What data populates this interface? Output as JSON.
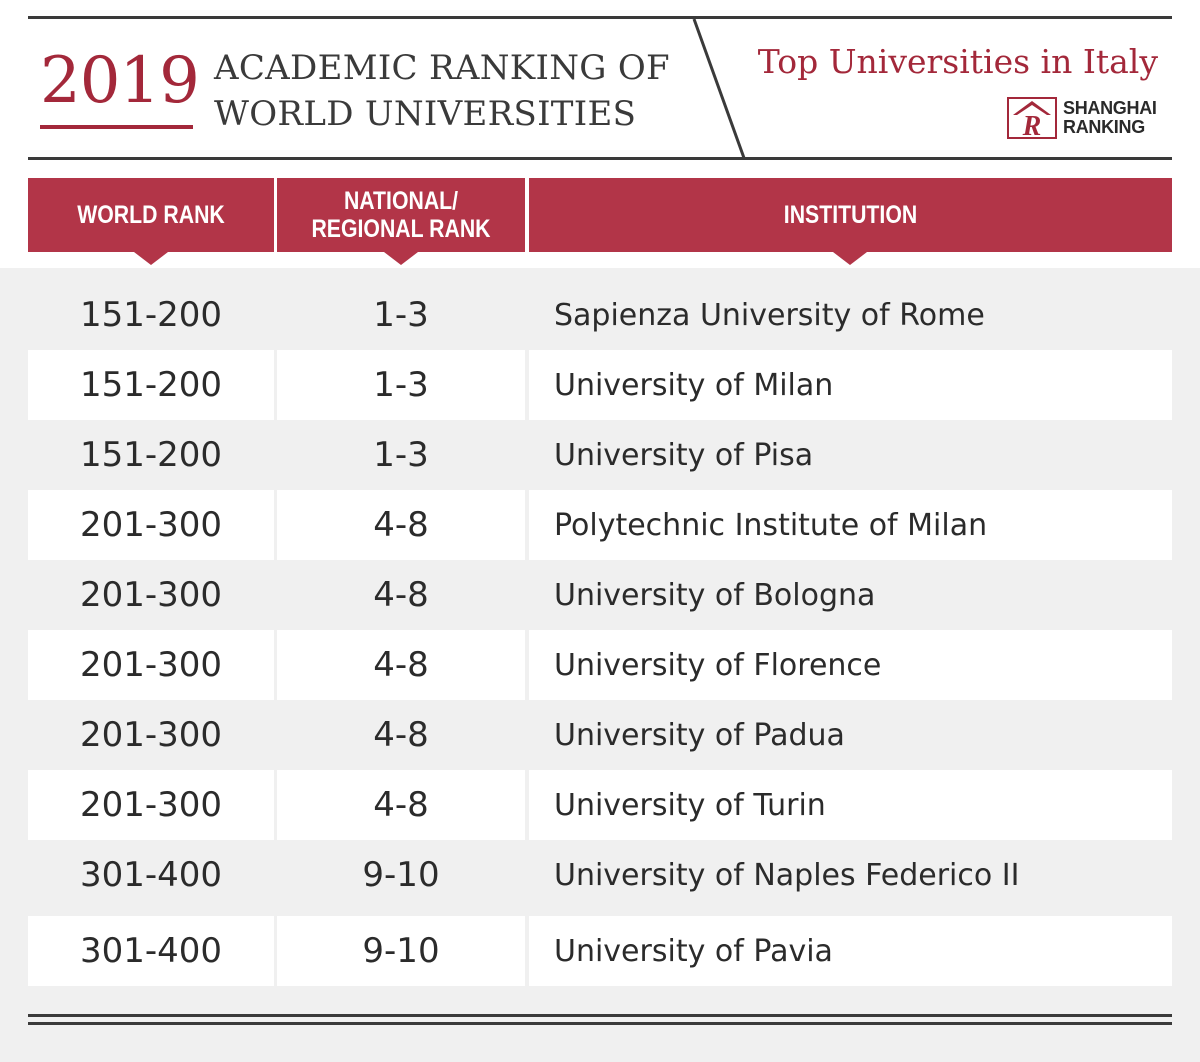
{
  "header": {
    "year": "2019",
    "title_line1": "ACADEMIC RANKING OF",
    "title_line2": "WORLD UNIVERSITIES",
    "subtitle": "Top Universities in Italy",
    "logo": {
      "text_line1": "SHANGHAI",
      "text_line2": "RANKING",
      "mark_letter": "R"
    }
  },
  "colors": {
    "accent": "#a3283a",
    "header_tab": "#b23548",
    "text": "#2b2b2b",
    "background": "#f0f0f0"
  },
  "table": {
    "columns": [
      "WORLD RANK",
      "NATIONAL/ REGIONAL RANK",
      "INSTITUTION"
    ],
    "rows": [
      {
        "world_rank": "151-200",
        "national_rank": "1-3",
        "institution": "Sapienza University of Rome"
      },
      {
        "world_rank": "151-200",
        "national_rank": "1-3",
        "institution": "University of Milan"
      },
      {
        "world_rank": "151-200",
        "national_rank": "1-3",
        "institution": "University of Pisa"
      },
      {
        "world_rank": "201-300",
        "national_rank": "4-8",
        "institution": "Polytechnic Institute of Milan"
      },
      {
        "world_rank": "201-300",
        "national_rank": "4-8",
        "institution": "University of Bologna"
      },
      {
        "world_rank": "201-300",
        "national_rank": "4-8",
        "institution": "University of Florence"
      },
      {
        "world_rank": "201-300",
        "national_rank": "4-8",
        "institution": "University of Padua"
      },
      {
        "world_rank": "201-300",
        "national_rank": "4-8",
        "institution": "University of Turin"
      },
      {
        "world_rank": "301-400",
        "national_rank": "9-10",
        "institution": "University of Naples Federico II"
      },
      {
        "world_rank": "301-400",
        "national_rank": "9-10",
        "institution": "University of Pavia"
      }
    ]
  }
}
